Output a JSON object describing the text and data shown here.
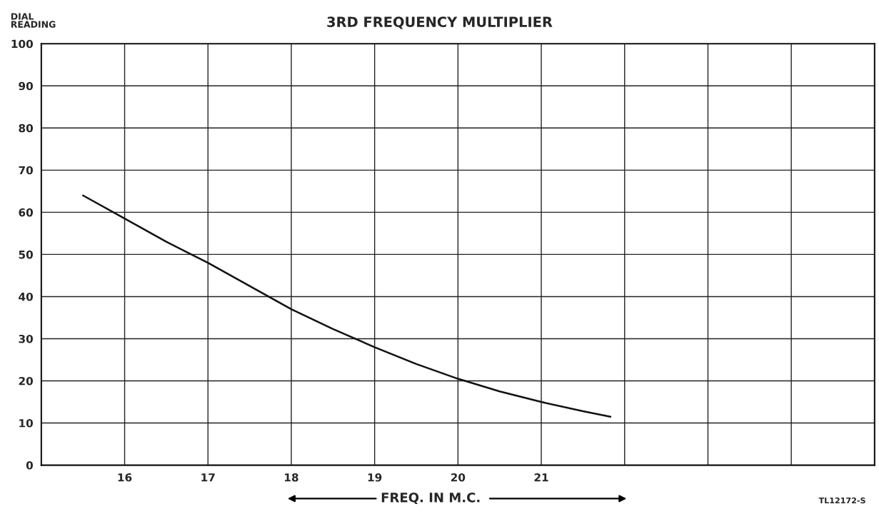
{
  "chart_data": {
    "type": "line",
    "title": "3RD FREQUENCY MULTIPLIER",
    "xlabel": "FREQ. IN M.C.",
    "ylabel": "DIAL\nREADING",
    "x": [
      15.5,
      16,
      16.5,
      17,
      17.5,
      18,
      18.5,
      19,
      19.5,
      20,
      20.5,
      21,
      21.5,
      21.83
    ],
    "series": [
      {
        "color": "#111111",
        "values": [
          64,
          58.5,
          53,
          48,
          42.5,
          37,
          32.3,
          28,
          24,
          20.5,
          17.5,
          15,
          12.8,
          11.5
        ]
      }
    ],
    "xlim": [
      15,
      25
    ],
    "xticks": [
      16,
      17,
      18,
      19,
      20,
      21,
      {
        "value": 22,
        "label": null
      },
      {
        "value": 23,
        "label": null
      },
      {
        "value": 24,
        "label": null
      }
    ],
    "ylim": [
      0,
      100
    ],
    "yticks": [
      0,
      10,
      20,
      30,
      40,
      50,
      60,
      70,
      80,
      90,
      100
    ],
    "grid": true,
    "marker": "none",
    "line_style": "solid",
    "annotations": [
      "TL12172-S"
    ]
  }
}
